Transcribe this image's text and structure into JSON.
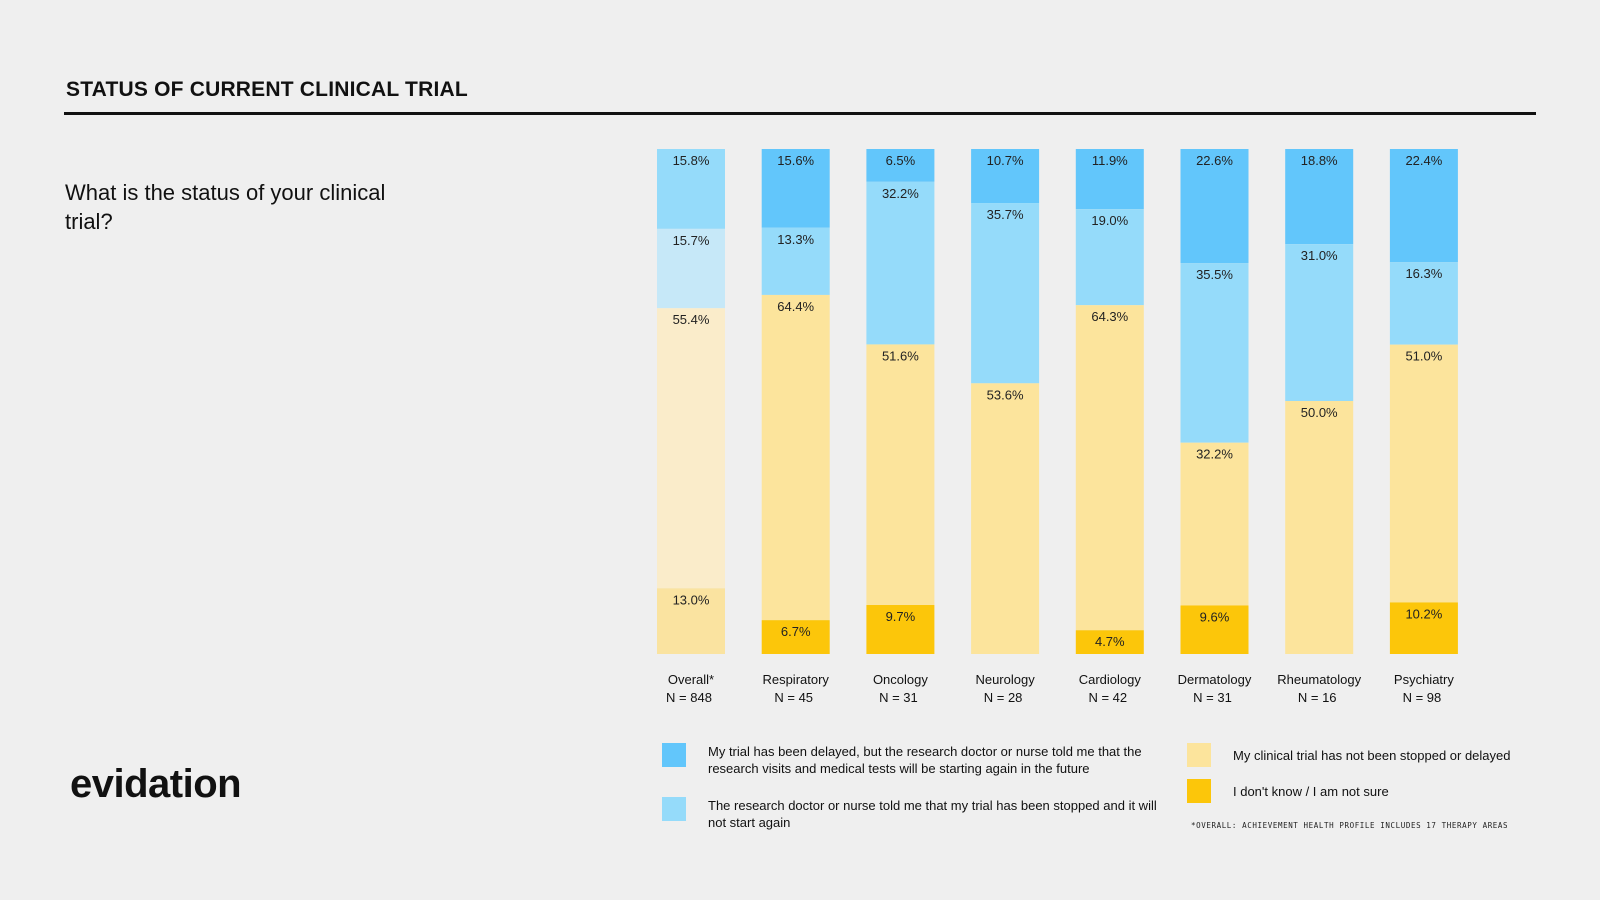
{
  "page": {
    "title": "STATUS OF CURRENT CLINICAL TRIAL",
    "question": "What is the status of your clinical trial?",
    "logo": "evidation",
    "footnote": "*OVERALL: ACHIEVEMENT HEALTH PROFILE INCLUDES 17 THERAPY AREAS"
  },
  "legend": [
    {
      "key": "delayed_restart",
      "label": "My trial has been delayed, but the research doctor or nurse told me that the research visits and medical tests will be starting again in the future",
      "color": "#62c6fb"
    },
    {
      "key": "stopped",
      "label": "The research doctor or nurse told me that my trial has been stopped and it will not start again",
      "color": "#95dbfa"
    },
    {
      "key": "not_stopped",
      "label": "My clinical trial has not been stopped or delayed",
      "color": "#fce49c"
    },
    {
      "key": "dont_know",
      "label": "I don't know / I am not sure",
      "color": "#fcc60a"
    }
  ],
  "chart_data": {
    "type": "bar",
    "stacked": true,
    "normalized": true,
    "title": "STATUS OF CURRENT CLINICAL TRIAL",
    "categories": [
      "Overall*",
      "Respiratory",
      "Oncology",
      "Neurology",
      "Cardiology",
      "Dermatology",
      "Rheumatology",
      "Psychiatry"
    ],
    "n_labels": [
      "N = 848",
      "N = 45",
      "N = 31",
      "N = 28",
      "N = 42",
      "N = 31",
      "N = 16",
      "N = 98"
    ],
    "ylim": [
      0,
      100
    ],
    "series": [
      {
        "name": "My trial has been delayed, but the research doctor or nurse told me that the research visits and medical tests will be starting again in the future",
        "key": "delayed_restart",
        "color": "#62c6fb",
        "values": [
          15.8,
          15.6,
          6.5,
          10.7,
          11.9,
          22.6,
          18.8,
          22.4
        ],
        "labels": [
          "15.8%",
          "15.6%",
          "6.5%",
          "10.7%",
          "11.9%",
          "22.6%",
          "18.8%",
          "22.4%"
        ]
      },
      {
        "name": "The research doctor or nurse told me that my trial has been stopped and it will not start again",
        "key": "stopped",
        "color": "#95dbfa",
        "values": [
          15.7,
          13.3,
          32.2,
          35.7,
          19.0,
          35.5,
          31.0,
          16.3
        ],
        "labels": [
          "15.7%",
          "13.3%",
          "32.2%",
          "35.7%",
          "19.0%",
          "35.5%",
          "31.0%",
          "16.3%"
        ]
      },
      {
        "name": "My clinical trial has not been stopped or delayed",
        "key": "not_stopped",
        "color": "#fce49c",
        "values": [
          55.4,
          64.4,
          51.6,
          53.6,
          64.3,
          32.2,
          50.0,
          51.0
        ],
        "labels": [
          "55.4%",
          "64.4%",
          "51.6%",
          "53.6%",
          "64.3%",
          "32.2%",
          "50.0%",
          "51.0%"
        ]
      },
      {
        "name": "I don't know / I am not sure",
        "key": "dont_know",
        "color": "#fcc60a",
        "values": [
          13.0,
          6.7,
          9.7,
          0,
          4.7,
          9.6,
          0,
          10.2
        ],
        "labels": [
          "13.0%",
          "6.7%",
          "9.7%",
          "",
          "4.7%",
          "9.6%",
          "",
          "10.2%"
        ]
      }
    ],
    "overall_colors": [
      "#95dbfa",
      "#c6e8f8",
      "#faecca",
      "#fae3a0"
    ]
  }
}
